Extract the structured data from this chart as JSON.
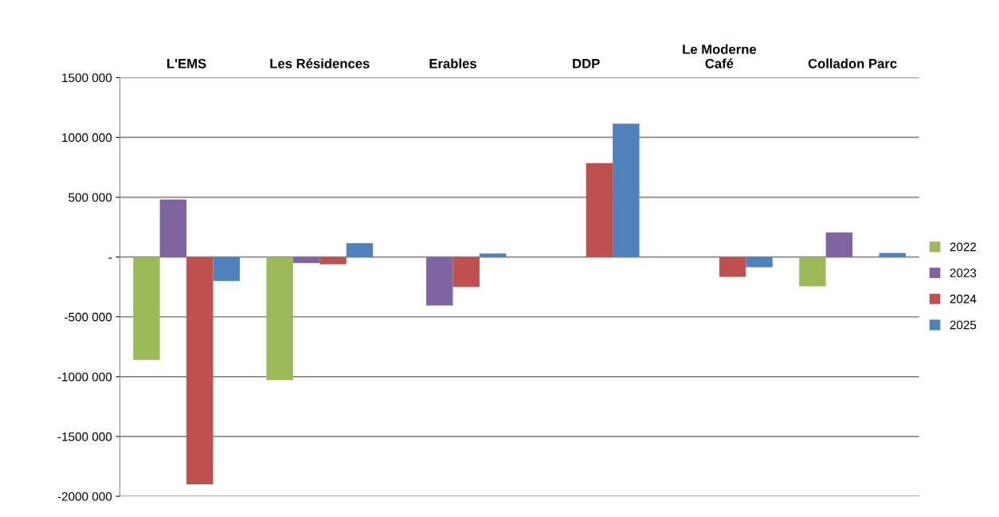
{
  "chart_data": {
    "type": "bar",
    "categories": [
      "L'EMS",
      "Les Résidences",
      "Erables",
      "DDP",
      "Le Moderne\nCafé",
      "Colladon Parc"
    ],
    "series": [
      {
        "name": "2022",
        "color": "#9bbb59",
        "values": [
          -860000,
          -1030000,
          null,
          null,
          null,
          -245000
        ]
      },
      {
        "name": "2023",
        "color": "#8064a2",
        "values": [
          480000,
          -50000,
          -405000,
          null,
          null,
          205000
        ]
      },
      {
        "name": "2024",
        "color": "#c0504d",
        "values": [
          -1900000,
          -60000,
          -250000,
          785000,
          -165000,
          null
        ]
      },
      {
        "name": "2025",
        "color": "#4f81bd",
        "values": [
          -200000,
          115000,
          30000,
          1115000,
          -85000,
          35000
        ]
      }
    ],
    "ylim": [
      -2000000,
      1500000
    ],
    "yticks": [
      {
        "value": -2000000,
        "label": "-2000 000"
      },
      {
        "value": -1500000,
        "label": "-1500 000"
      },
      {
        "value": -1000000,
        "label": "-1000 000"
      },
      {
        "value": -500000,
        "label": "-500 000"
      },
      {
        "value": 0,
        "label": "-"
      },
      {
        "value": 500000,
        "label": "500 000"
      },
      {
        "value": 1000000,
        "label": "1000 000"
      },
      {
        "value": 1500000,
        "label": "1500 000"
      }
    ],
    "grid": "y",
    "legend": "right"
  }
}
